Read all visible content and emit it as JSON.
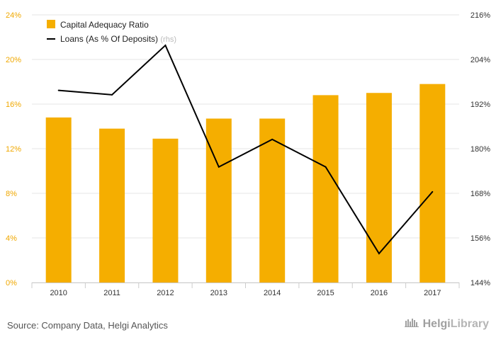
{
  "chart_data": {
    "type": "bar",
    "categories": [
      "2010",
      "2011",
      "2012",
      "2013",
      "2014",
      "2015",
      "2016",
      "2017"
    ],
    "series": [
      {
        "name": "Capital Adequacy Ratio",
        "type": "bar",
        "axis": "left",
        "values": [
          14.8,
          13.8,
          12.9,
          14.7,
          14.7,
          16.8,
          17.0,
          17.8
        ]
      },
      {
        "name": "Loans (As % Of Deposits)",
        "note": "(rhs)",
        "type": "line",
        "axis": "right",
        "values": [
          195.7,
          194.5,
          207.8,
          175.1,
          182.5,
          175.1,
          151.8,
          168.4
        ]
      }
    ],
    "left_axis": {
      "min": 0,
      "max": 24,
      "step": 4,
      "suffix": "%",
      "ticks": [
        "0%",
        "4%",
        "8%",
        "12%",
        "16%",
        "20%",
        "24%"
      ]
    },
    "right_axis": {
      "min": 144,
      "max": 216,
      "step": 12,
      "suffix": "%",
      "ticks": [
        "144%",
        "156%",
        "168%",
        "180%",
        "192%",
        "204%",
        "216%"
      ]
    },
    "colors": {
      "bar": "#f5ae00",
      "line": "#000000",
      "grid": "#e6e6e6",
      "left_ticks": "#f0a800"
    },
    "legend_position": "top-left"
  },
  "footer": {
    "source": "Source: Company Data, Helgi Analytics",
    "logo_part1": "Helgi",
    "logo_part2": "Library"
  }
}
